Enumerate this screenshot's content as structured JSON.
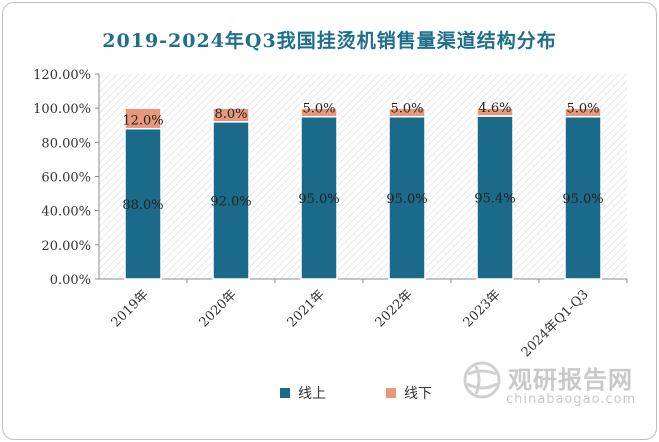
{
  "chart_data": {
    "type": "bar",
    "stacked": true,
    "title": "2019-2024年Q3我国挂烫机销售量渠道结构分布",
    "categories": [
      "2019年",
      "2020年",
      "2021年",
      "2022年",
      "2023年",
      "2024年Q1-Q3"
    ],
    "series": [
      {
        "name": "线上",
        "color": "#1c6a8a",
        "values": [
          88.0,
          92.0,
          95.0,
          95.0,
          95.4,
          95.0
        ],
        "labels": [
          "88.0%",
          "92.0%",
          "95.0%",
          "95.0%",
          "95.4%",
          "95.0%"
        ]
      },
      {
        "name": "线下",
        "color": "#e8987a",
        "values": [
          12.0,
          8.0,
          5.0,
          5.0,
          4.6,
          5.0
        ],
        "labels": [
          "12.0%",
          "8.0%",
          "5.0%",
          "5.0%",
          "4.6%",
          "5.0%"
        ]
      }
    ],
    "ylim": [
      0,
      120
    ],
    "yticks": [
      0,
      20,
      40,
      60,
      80,
      100,
      120
    ],
    "ytick_labels": [
      "0.00%",
      "20.00%",
      "40.00%",
      "60.00%",
      "80.00%",
      "100.00%",
      "120.00%"
    ],
    "grid": false,
    "legend_position": "bottom"
  },
  "watermark": {
    "logo_icon": "globe-logo-icon",
    "brand": "观研报告网",
    "url": "chinabaogao.com"
  }
}
